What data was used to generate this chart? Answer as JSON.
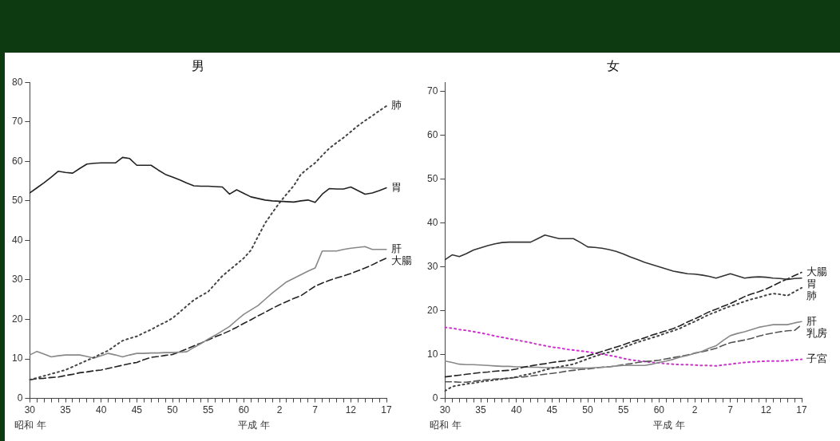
{
  "chart_data": [
    {
      "type": "line",
      "title": "男",
      "categories": [
        "30",
        null,
        null,
        null,
        null,
        "35",
        null,
        null,
        null,
        null,
        "40",
        null,
        null,
        null,
        null,
        "45",
        null,
        null,
        null,
        null,
        "50",
        null,
        null,
        null,
        null,
        "55",
        null,
        null,
        null,
        null,
        "60",
        null,
        null,
        null,
        null,
        "2",
        null,
        null,
        null,
        null,
        "7",
        null,
        null,
        null,
        null,
        "12",
        null,
        null,
        null,
        null,
        "17"
      ],
      "ylim": [
        0,
        80
      ],
      "yticks": [
        0,
        10,
        20,
        30,
        40,
        50,
        60,
        70,
        80
      ],
      "grid": false,
      "legend": false,
      "marker": "none",
      "annotations": [
        "昭和 年",
        "平成 年"
      ],
      "series": [
        {
          "name": "胃",
          "color": "#222222",
          "line_style": "solid",
          "values": [
            52,
            53.3,
            54.6,
            56,
            57.5,
            57.2,
            57,
            58.2,
            59.3,
            59.5,
            59.6,
            59.6,
            59.6,
            61,
            60.7,
            59,
            59,
            59,
            57.8,
            56.7,
            56,
            55.3,
            54.5,
            53.8,
            53.7,
            53.7,
            53.6,
            53.5,
            51.7,
            52.8,
            51.9,
            51,
            50.6,
            50.2,
            50,
            49.9,
            49.8,
            49.7,
            50,
            50.2,
            49.6,
            51.7,
            53.1,
            53,
            53,
            53.5,
            52.6,
            51.7,
            52,
            52.6,
            53.3
          ]
        },
        {
          "name": "肺",
          "color": "#444444",
          "line_style": "dotted",
          "values": [
            4.7,
            5.2,
            5.7,
            6.2,
            6.7,
            7.2,
            8,
            8.8,
            9.6,
            10.4,
            11.3,
            12.1,
            13.4,
            14.6,
            15.2,
            15.7,
            16.6,
            17.4,
            18.4,
            19.3,
            20.3,
            21.8,
            23.4,
            24.9,
            26,
            27,
            29,
            31,
            32.5,
            34,
            35.5,
            37.5,
            41,
            44.4,
            47,
            49.5,
            51.7,
            53.8,
            56.7,
            58.2,
            59.6,
            61.5,
            63.3,
            64.7,
            66,
            67.5,
            69,
            70.3,
            71.5,
            72.8,
            74
          ]
        },
        {
          "name": "肝",
          "color": "#888888",
          "line_style": "solid",
          "values": [
            11,
            11.9,
            11.2,
            10.5,
            10.8,
            11,
            11,
            11,
            10.6,
            10.2,
            10.8,
            11.4,
            11,
            10.5,
            11,
            11.4,
            11.4,
            11.5,
            11.5,
            11.6,
            11.6,
            11.7,
            11.8,
            12.9,
            13.9,
            15,
            16,
            17.1,
            18.2,
            19.8,
            21.3,
            22.4,
            23.5,
            25.1,
            26.7,
            28.1,
            29.5,
            30.4,
            31.3,
            32.2,
            33,
            37.3,
            37.3,
            37.3,
            37.7,
            38,
            38.2,
            38.4,
            37.7,
            37.7,
            37.7
          ]
        },
        {
          "name": "大腸",
          "color": "#222222",
          "line_style": "dashed",
          "values": [
            4.7,
            5,
            5.1,
            5.3,
            5.4,
            5.8,
            6.1,
            6.5,
            6.7,
            7,
            7.2,
            7.6,
            8,
            8.4,
            8.8,
            9.1,
            9.8,
            10.4,
            10.6,
            10.9,
            11.1,
            11.8,
            12.5,
            13.3,
            14,
            14.8,
            15.6,
            16.3,
            17.1,
            18,
            19,
            19.9,
            20.9,
            21.8,
            22.8,
            23.7,
            24.5,
            25.3,
            26,
            27.2,
            28.4,
            29.2,
            29.9,
            30.5,
            31,
            31.6,
            32.3,
            33,
            33.8,
            34.7,
            35.5
          ]
        }
      ]
    },
    {
      "type": "line",
      "title": "女",
      "categories": [
        "30",
        null,
        null,
        null,
        null,
        "35",
        null,
        null,
        null,
        null,
        "40",
        null,
        null,
        null,
        null,
        "45",
        null,
        null,
        null,
        null,
        "50",
        null,
        null,
        null,
        null,
        "55",
        null,
        null,
        null,
        null,
        "60",
        null,
        null,
        null,
        null,
        "2",
        null,
        null,
        null,
        null,
        "7",
        null,
        null,
        null,
        null,
        "12",
        null,
        null,
        null,
        null,
        "17"
      ],
      "ylim": [
        0,
        72
      ],
      "yticks": [
        0,
        10,
        20,
        30,
        40,
        50,
        60,
        70
      ],
      "grid": false,
      "legend": false,
      "marker": "none",
      "annotations": [
        "昭和 年",
        "平成 年"
      ],
      "series": [
        {
          "name": "胃",
          "color": "#333333",
          "line_style": "solid",
          "values": [
            31.6,
            32.7,
            32.3,
            33,
            33.8,
            34.3,
            34.8,
            35.2,
            35.5,
            35.6,
            35.6,
            35.6,
            35.6,
            36.4,
            37.2,
            36.8,
            36.4,
            36.4,
            36.4,
            35.5,
            34.5,
            34.4,
            34.2,
            33.9,
            33.5,
            32.9,
            32.2,
            31.6,
            31,
            30.5,
            30,
            29.5,
            29,
            28.7,
            28.4,
            28.3,
            28.1,
            27.8,
            27.4,
            27.9,
            28.4,
            27.9,
            27.4,
            27.6,
            27.7,
            27.6,
            27.4,
            27.3,
            27.1,
            27.3,
            27.4
          ]
        },
        {
          "name": "大腸",
          "color": "#222222",
          "line_style": "dashed",
          "values": [
            4.9,
            5.1,
            5.3,
            5.5,
            5.7,
            5.9,
            6,
            6.2,
            6.3,
            6.4,
            6.7,
            7.1,
            7.4,
            7.7,
            7.9,
            8.2,
            8.4,
            8.6,
            8.8,
            9.3,
            9.7,
            10.2,
            10.7,
            11.2,
            11.7,
            12.2,
            12.8,
            13.3,
            13.8,
            14.4,
            14.9,
            15.4,
            15.9,
            16.6,
            17.4,
            18.1,
            18.9,
            19.7,
            20.3,
            21,
            21.6,
            22.4,
            23.2,
            23.8,
            24.3,
            24.9,
            25.7,
            26.5,
            27.2,
            28,
            28.7
          ]
        },
        {
          "name": "肺",
          "color": "#444444",
          "line_style": "dotted",
          "values": [
            1.7,
            2.7,
            3,
            3.3,
            3.5,
            3.8,
            4,
            4.2,
            4.4,
            4.6,
            4.9,
            5.3,
            5.6,
            6,
            6.5,
            6.9,
            7.2,
            7.5,
            7.8,
            8.4,
            9,
            9.6,
            10.1,
            10.5,
            11,
            11.6,
            12.2,
            12.8,
            13.3,
            13.8,
            14.3,
            14.9,
            15.4,
            16,
            16.8,
            17.5,
            18.3,
            19.1,
            19.7,
            20.4,
            21,
            21.5,
            22.1,
            22.6,
            23,
            23.5,
            23.9,
            23.7,
            23.4,
            24.3,
            25.2
          ]
        },
        {
          "name": "肝",
          "color": "#888888",
          "line_style": "solid",
          "values": [
            8.5,
            8.2,
            7.8,
            7.7,
            7.7,
            7.6,
            7.5,
            7.4,
            7.3,
            7.3,
            7.2,
            7.2,
            7.1,
            7.1,
            7,
            7,
            7,
            7,
            6.9,
            6.9,
            6.9,
            7,
            7.1,
            7.2,
            7.4,
            7.5,
            7.5,
            7.5,
            7.5,
            7.8,
            8.2,
            8.5,
            8.9,
            9.4,
            9.8,
            10.3,
            10.7,
            11.4,
            12,
            13.2,
            14.3,
            14.8,
            15.2,
            15.7,
            16.2,
            16.5,
            16.8,
            16.8,
            16.8,
            17.2,
            17.5
          ]
        },
        {
          "name": "乳房",
          "color": "#555555",
          "line_style": "dashed",
          "values": [
            3.8,
            3.8,
            3.7,
            3.7,
            3.9,
            4.1,
            4.3,
            4.4,
            4.5,
            4.6,
            4.8,
            4.9,
            5.1,
            5.3,
            5.5,
            5.7,
            5.9,
            6.2,
            6.4,
            6.6,
            6.7,
            6.9,
            7.1,
            7.2,
            7.4,
            7.7,
            7.9,
            8.2,
            8.4,
            8.5,
            8.7,
            9,
            9.3,
            9.6,
            9.9,
            10.3,
            10.6,
            11,
            11.4,
            12.1,
            12.7,
            13,
            13.3,
            13.7,
            14.2,
            14.6,
            14.9,
            15.2,
            15.4,
            15.5,
            16.8
          ]
        },
        {
          "name": "子宮",
          "color": "#cc33cc",
          "line_style": "dotted",
          "values": [
            16.2,
            16,
            15.7,
            15.5,
            15.2,
            14.9,
            14.6,
            14.2,
            13.9,
            13.6,
            13.3,
            13,
            12.7,
            12.3,
            12,
            11.7,
            11.5,
            11.2,
            11,
            10.8,
            10.6,
            10.3,
            10.1,
            9.8,
            9.5,
            9.1,
            8.8,
            8.6,
            8.4,
            8.2,
            8.1,
            7.9,
            7.8,
            7.7,
            7.7,
            7.6,
            7.5,
            7.5,
            7.4,
            7.6,
            7.8,
            8,
            8.2,
            8.3,
            8.4,
            8.5,
            8.5,
            8.5,
            8.6,
            8.8,
            8.9
          ]
        }
      ]
    }
  ]
}
